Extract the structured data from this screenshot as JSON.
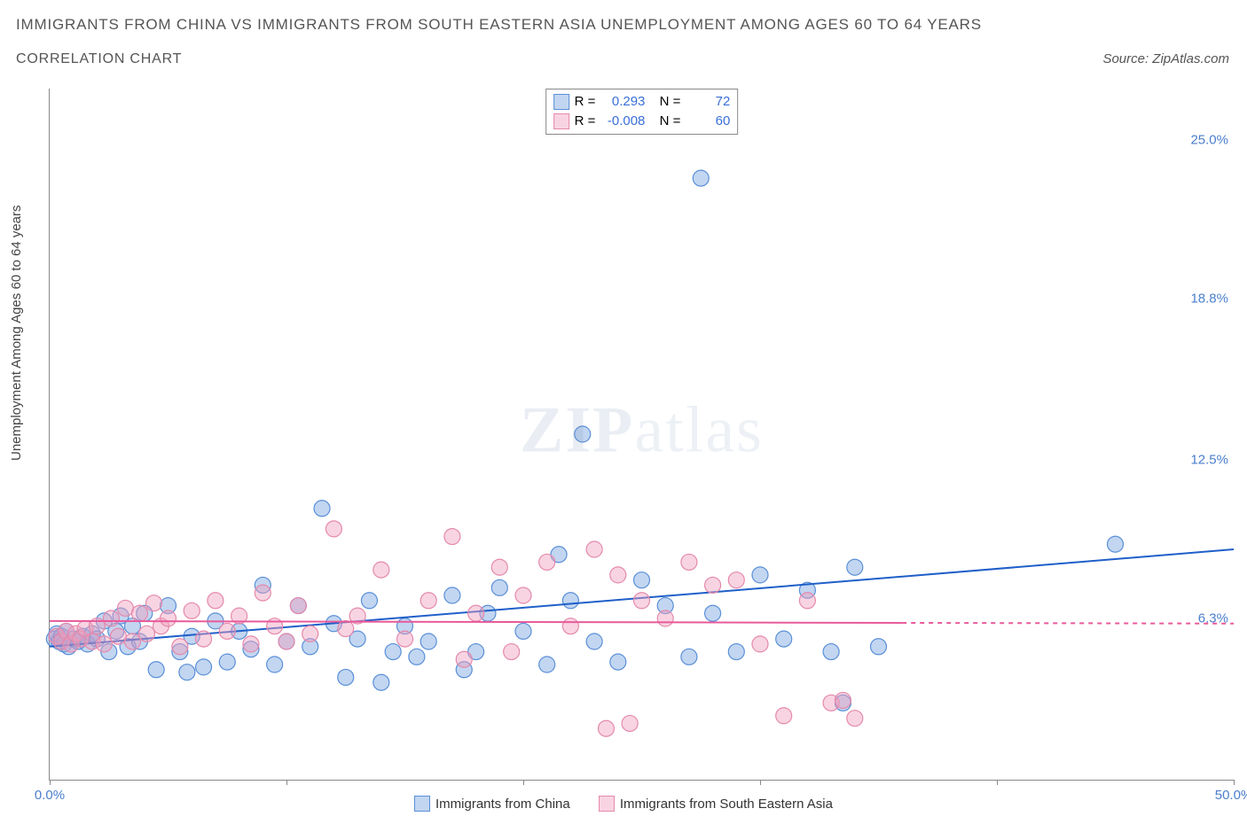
{
  "title": "IMMIGRANTS FROM CHINA VS IMMIGRANTS FROM SOUTH EASTERN ASIA UNEMPLOYMENT AMONG AGES 60 TO 64 YEARS",
  "subtitle": "CORRELATION CHART",
  "source_label": "Source: ZipAtlas.com",
  "watermark_a": "ZIP",
  "watermark_b": "atlas",
  "ylabel": "Unemployment Among Ages 60 to 64 years",
  "chart": {
    "type": "scatter-with-regression",
    "xlim": [
      0,
      50
    ],
    "ylim": [
      0,
      27
    ],
    "xticks": [
      0,
      50
    ],
    "xtick_labels": [
      "0.0%",
      "50.0%"
    ],
    "xtick_marks": [
      0,
      10,
      20,
      30,
      40,
      50
    ],
    "yticks": [
      6.3,
      12.5,
      18.8,
      25.0
    ],
    "ytick_labels": [
      "6.3%",
      "12.5%",
      "18.8%",
      "25.0%"
    ],
    "axis_color": "#888888",
    "tick_label_color": "#4a7ecc",
    "background": "#ffffff",
    "marker_radius": 9,
    "marker_stroke_width": 1.2,
    "series": [
      {
        "name": "Immigrants from China",
        "fill": "rgba(120,165,225,0.45)",
        "stroke": "#5a8fd8",
        "line_color": "#1f5fc9",
        "line_width": 2,
        "R": "0.293",
        "N": "72",
        "regression": {
          "x0": 0,
          "y0": 5.2,
          "x1": 50,
          "y1": 9.0
        },
        "points": [
          [
            0.2,
            5.5
          ],
          [
            0.3,
            5.7
          ],
          [
            0.4,
            5.4
          ],
          [
            0.5,
            5.6
          ],
          [
            0.6,
            5.3
          ],
          [
            0.7,
            5.8
          ],
          [
            0.8,
            5.2
          ],
          [
            1.0,
            5.5
          ],
          [
            1.2,
            5.4
          ],
          [
            1.4,
            5.6
          ],
          [
            1.6,
            5.3
          ],
          [
            1.8,
            5.7
          ],
          [
            2.0,
            5.5
          ],
          [
            2.3,
            6.2
          ],
          [
            2.5,
            5.0
          ],
          [
            2.8,
            5.8
          ],
          [
            3.0,
            6.4
          ],
          [
            3.3,
            5.2
          ],
          [
            3.5,
            6.0
          ],
          [
            3.8,
            5.4
          ],
          [
            4.0,
            6.5
          ],
          [
            4.5,
            4.3
          ],
          [
            5.0,
            6.8
          ],
          [
            5.5,
            5.0
          ],
          [
            5.8,
            4.2
          ],
          [
            6.0,
            5.6
          ],
          [
            6.5,
            4.4
          ],
          [
            7.0,
            6.2
          ],
          [
            7.5,
            4.6
          ],
          [
            8.0,
            5.8
          ],
          [
            8.5,
            5.1
          ],
          [
            9.0,
            7.6
          ],
          [
            9.5,
            4.5
          ],
          [
            10.0,
            5.4
          ],
          [
            10.5,
            6.8
          ],
          [
            11.0,
            5.2
          ],
          [
            11.5,
            10.6
          ],
          [
            12.0,
            6.1
          ],
          [
            12.5,
            4.0
          ],
          [
            13.0,
            5.5
          ],
          [
            13.5,
            7.0
          ],
          [
            14.0,
            3.8
          ],
          [
            14.5,
            5.0
          ],
          [
            15.0,
            6.0
          ],
          [
            15.5,
            4.8
          ],
          [
            16.0,
            5.4
          ],
          [
            17.0,
            7.2
          ],
          [
            17.5,
            4.3
          ],
          [
            18.0,
            5.0
          ],
          [
            18.5,
            6.5
          ],
          [
            19.0,
            7.5
          ],
          [
            20.0,
            5.8
          ],
          [
            21.0,
            4.5
          ],
          [
            21.5,
            8.8
          ],
          [
            22.0,
            7.0
          ],
          [
            22.5,
            13.5
          ],
          [
            23.0,
            5.4
          ],
          [
            24.0,
            4.6
          ],
          [
            25.0,
            7.8
          ],
          [
            26.0,
            6.8
          ],
          [
            27.0,
            4.8
          ],
          [
            27.5,
            23.5
          ],
          [
            28.0,
            6.5
          ],
          [
            29.0,
            5.0
          ],
          [
            30.0,
            8.0
          ],
          [
            31.0,
            5.5
          ],
          [
            32.0,
            7.4
          ],
          [
            33.0,
            5.0
          ],
          [
            34.0,
            8.3
          ],
          [
            35.0,
            5.2
          ],
          [
            45.0,
            9.2
          ],
          [
            33.5,
            3.0
          ]
        ]
      },
      {
        "name": "Immigrants from South Eastern Asia",
        "fill": "rgba(240,160,190,0.45)",
        "stroke": "#e589ab",
        "line_color": "#e85a9a",
        "line_width": 2,
        "dash_after_x": 36,
        "R": "-0.008",
        "N": "60",
        "regression": {
          "x0": 0,
          "y0": 6.2,
          "x1": 50,
          "y1": 6.1
        },
        "points": [
          [
            0.3,
            5.6
          ],
          [
            0.5,
            5.4
          ],
          [
            0.7,
            5.8
          ],
          [
            0.9,
            5.3
          ],
          [
            1.1,
            5.7
          ],
          [
            1.3,
            5.5
          ],
          [
            1.5,
            5.9
          ],
          [
            1.8,
            5.4
          ],
          [
            2.0,
            6.0
          ],
          [
            2.3,
            5.3
          ],
          [
            2.6,
            6.3
          ],
          [
            2.9,
            5.6
          ],
          [
            3.2,
            6.7
          ],
          [
            3.5,
            5.4
          ],
          [
            3.8,
            6.5
          ],
          [
            4.1,
            5.7
          ],
          [
            4.4,
            6.9
          ],
          [
            4.7,
            6.0
          ],
          [
            5.0,
            6.3
          ],
          [
            5.5,
            5.2
          ],
          [
            6.0,
            6.6
          ],
          [
            6.5,
            5.5
          ],
          [
            7.0,
            7.0
          ],
          [
            7.5,
            5.8
          ],
          [
            8.0,
            6.4
          ],
          [
            8.5,
            5.3
          ],
          [
            9.0,
            7.3
          ],
          [
            9.5,
            6.0
          ],
          [
            10.0,
            5.4
          ],
          [
            10.5,
            6.8
          ],
          [
            11.0,
            5.7
          ],
          [
            12.0,
            9.8
          ],
          [
            12.5,
            5.9
          ],
          [
            13.0,
            6.4
          ],
          [
            14.0,
            8.2
          ],
          [
            15.0,
            5.5
          ],
          [
            16.0,
            7.0
          ],
          [
            17.0,
            9.5
          ],
          [
            17.5,
            4.7
          ],
          [
            18.0,
            6.5
          ],
          [
            19.0,
            8.3
          ],
          [
            19.5,
            5.0
          ],
          [
            20.0,
            7.2
          ],
          [
            21.0,
            8.5
          ],
          [
            22.0,
            6.0
          ],
          [
            23.0,
            9.0
          ],
          [
            23.5,
            2.0
          ],
          [
            24.0,
            8.0
          ],
          [
            24.5,
            2.2
          ],
          [
            25.0,
            7.0
          ],
          [
            26.0,
            6.3
          ],
          [
            27.0,
            8.5
          ],
          [
            28.0,
            7.6
          ],
          [
            29.0,
            7.8
          ],
          [
            30.0,
            5.3
          ],
          [
            31.0,
            2.5
          ],
          [
            32.0,
            7.0
          ],
          [
            33.0,
            3.0
          ],
          [
            34.0,
            2.4
          ],
          [
            33.5,
            3.1
          ]
        ]
      }
    ]
  },
  "legend_top": {
    "r_label": "R =",
    "n_label": "N ="
  },
  "legend_bottom": {
    "items": [
      "Immigrants from China",
      "Immigrants from South Eastern Asia"
    ]
  }
}
